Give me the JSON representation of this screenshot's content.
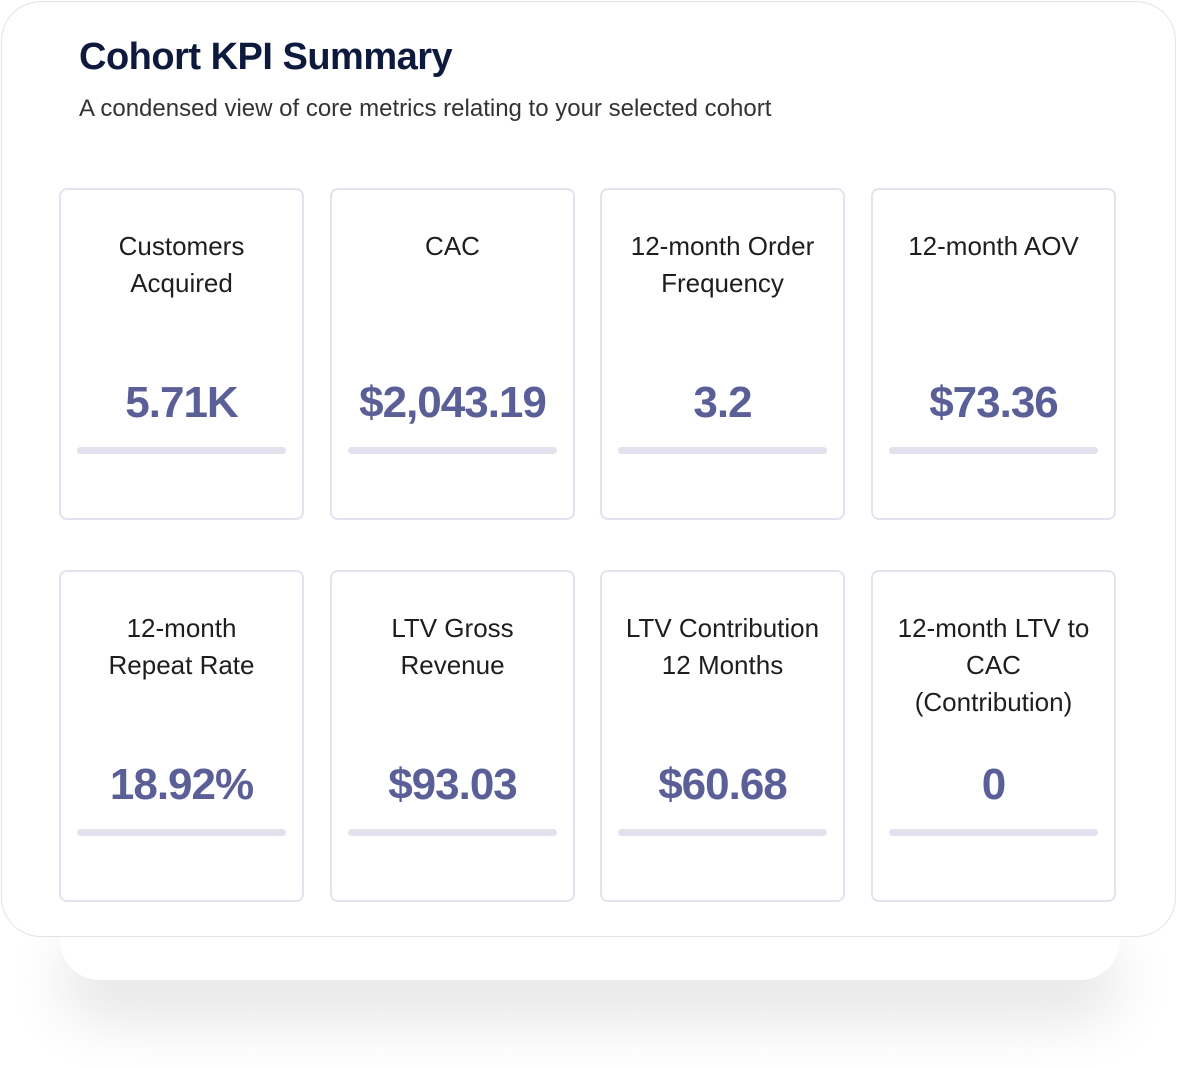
{
  "header": {
    "title": "Cohort KPI Summary",
    "subtitle": "A condensed view of core metrics relating to your selected cohort"
  },
  "colors": {
    "title": "#0e1a3d",
    "value": "#5b5f98",
    "card_border": "#e2e3ef",
    "bar": "#e1e2ee"
  },
  "kpis": [
    {
      "label": "Customers Acquired",
      "value": "5.71K"
    },
    {
      "label": "CAC",
      "value": "$2,043.19"
    },
    {
      "label": "12-month Order Frequency",
      "value": "3.2"
    },
    {
      "label": "12-month AOV",
      "value": "$73.36"
    },
    {
      "label": "12-month Repeat Rate",
      "value": "18.92%"
    },
    {
      "label": "LTV Gross Revenue",
      "value": "$93.03"
    },
    {
      "label": "LTV Contribution 12 Months",
      "value": "$60.68"
    },
    {
      "label": "12-month LTV to CAC (Contribution)",
      "value": "0"
    }
  ]
}
